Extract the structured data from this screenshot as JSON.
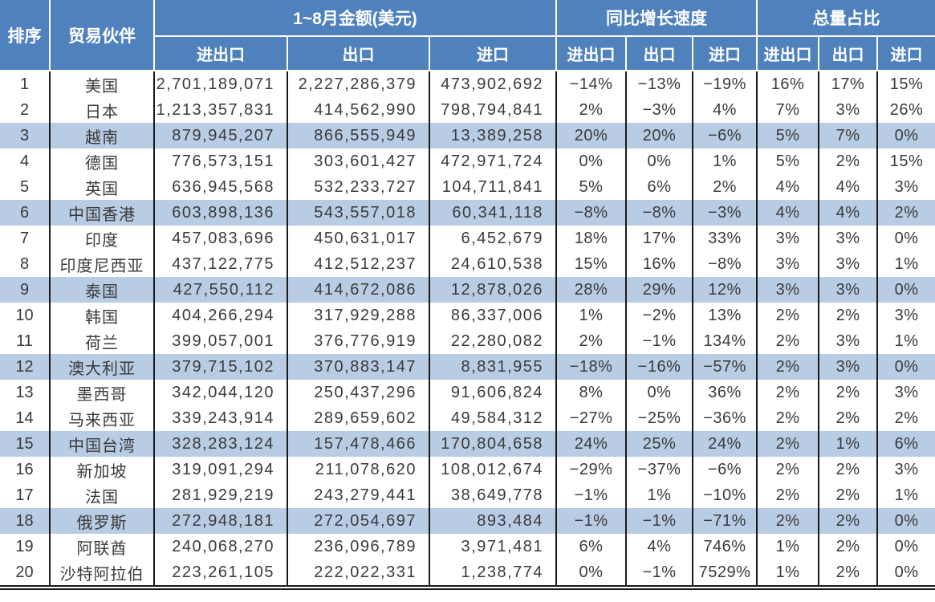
{
  "colors": {
    "header_bg": "#4f81bd",
    "header_text": "#ffffff",
    "stripe": "#b8cce4",
    "body_text": "#3a3a3a",
    "grid": "#1a1a1a"
  },
  "chart_data": {
    "type": "table",
    "header": {
      "rank": "排序",
      "partner": "贸易伙伴",
      "groups": [
        {
          "label": "1~8月金额(美元)",
          "subcolumns": [
            "进出口",
            "出口",
            "进口"
          ]
        },
        {
          "label": "同比增长速度",
          "subcolumns": [
            "进出口",
            "出口",
            "进口"
          ]
        },
        {
          "label": "总量占比",
          "subcolumns": [
            "进出口",
            "出口",
            "进口"
          ]
        }
      ]
    },
    "highlighted_rows": [
      3,
      6,
      9,
      12,
      15,
      18
    ],
    "rows": [
      [
        "1",
        "美国",
        "2,701,189,071",
        "2,227,286,379",
        "473,902,692",
        "−14%",
        "−13%",
        "−19%",
        "16%",
        "17%",
        "15%"
      ],
      [
        "2",
        "日本",
        "1,213,357,831",
        "414,562,990",
        "798,794,841",
        "2%",
        "−3%",
        "4%",
        "7%",
        "3%",
        "26%"
      ],
      [
        "3",
        "越南",
        "879,945,207",
        "866,555,949",
        "13,389,258",
        "20%",
        "20%",
        "−6%",
        "5%",
        "7%",
        "0%"
      ],
      [
        "4",
        "德国",
        "776,573,151",
        "303,601,427",
        "472,971,724",
        "0%",
        "0%",
        "1%",
        "5%",
        "2%",
        "15%"
      ],
      [
        "5",
        "英国",
        "636,945,568",
        "532,233,727",
        "104,711,841",
        "5%",
        "6%",
        "2%",
        "4%",
        "4%",
        "3%"
      ],
      [
        "6",
        "中国香港",
        "603,898,136",
        "543,557,018",
        "60,341,118",
        "−8%",
        "−8%",
        "−3%",
        "4%",
        "4%",
        "2%"
      ],
      [
        "7",
        "印度",
        "457,083,696",
        "450,631,017",
        "6,452,679",
        "18%",
        "17%",
        "33%",
        "3%",
        "3%",
        "0%"
      ],
      [
        "8",
        "印度尼西亚",
        "437,122,775",
        "412,512,237",
        "24,610,538",
        "15%",
        "16%",
        "−8%",
        "3%",
        "3%",
        "1%"
      ],
      [
        "9",
        "泰国",
        "427,550,112",
        "414,672,086",
        "12,878,026",
        "28%",
        "29%",
        "12%",
        "3%",
        "3%",
        "0%"
      ],
      [
        "10",
        "韩国",
        "404,266,294",
        "317,929,288",
        "86,337,006",
        "1%",
        "−2%",
        "13%",
        "2%",
        "2%",
        "3%"
      ],
      [
        "11",
        "荷兰",
        "399,057,001",
        "376,776,919",
        "22,280,082",
        "2%",
        "−1%",
        "134%",
        "2%",
        "3%",
        "1%"
      ],
      [
        "12",
        "澳大利亚",
        "379,715,102",
        "370,883,147",
        "8,831,955",
        "−18%",
        "−16%",
        "−57%",
        "2%",
        "3%",
        "0%"
      ],
      [
        "13",
        "墨西哥",
        "342,044,120",
        "250,437,296",
        "91,606,824",
        "8%",
        "0%",
        "36%",
        "2%",
        "2%",
        "3%"
      ],
      [
        "14",
        "马来西亚",
        "339,243,914",
        "289,659,602",
        "49,584,312",
        "−27%",
        "−25%",
        "−36%",
        "2%",
        "2%",
        "2%"
      ],
      [
        "15",
        "中国台湾",
        "328,283,124",
        "157,478,466",
        "170,804,658",
        "24%",
        "25%",
        "24%",
        "2%",
        "1%",
        "6%"
      ],
      [
        "16",
        "新加坡",
        "319,091,294",
        "211,078,620",
        "108,012,674",
        "−29%",
        "−37%",
        "−6%",
        "2%",
        "2%",
        "3%"
      ],
      [
        "17",
        "法国",
        "281,929,219",
        "243,279,441",
        "38,649,778",
        "−1%",
        "1%",
        "−10%",
        "2%",
        "2%",
        "1%"
      ],
      [
        "18",
        "俄罗斯",
        "272,948,181",
        "272,054,697",
        "893,484",
        "−1%",
        "−1%",
        "−71%",
        "2%",
        "2%",
        "0%"
      ],
      [
        "19",
        "阿联酋",
        "240,068,270",
        "236,096,789",
        "3,971,481",
        "6%",
        "4%",
        "746%",
        "1%",
        "2%",
        "0%"
      ],
      [
        "20",
        "沙特阿拉伯",
        "223,261,105",
        "222,022,331",
        "1,238,774",
        "0%",
        "−1%",
        "7529%",
        "1%",
        "2%",
        "0%"
      ]
    ]
  }
}
